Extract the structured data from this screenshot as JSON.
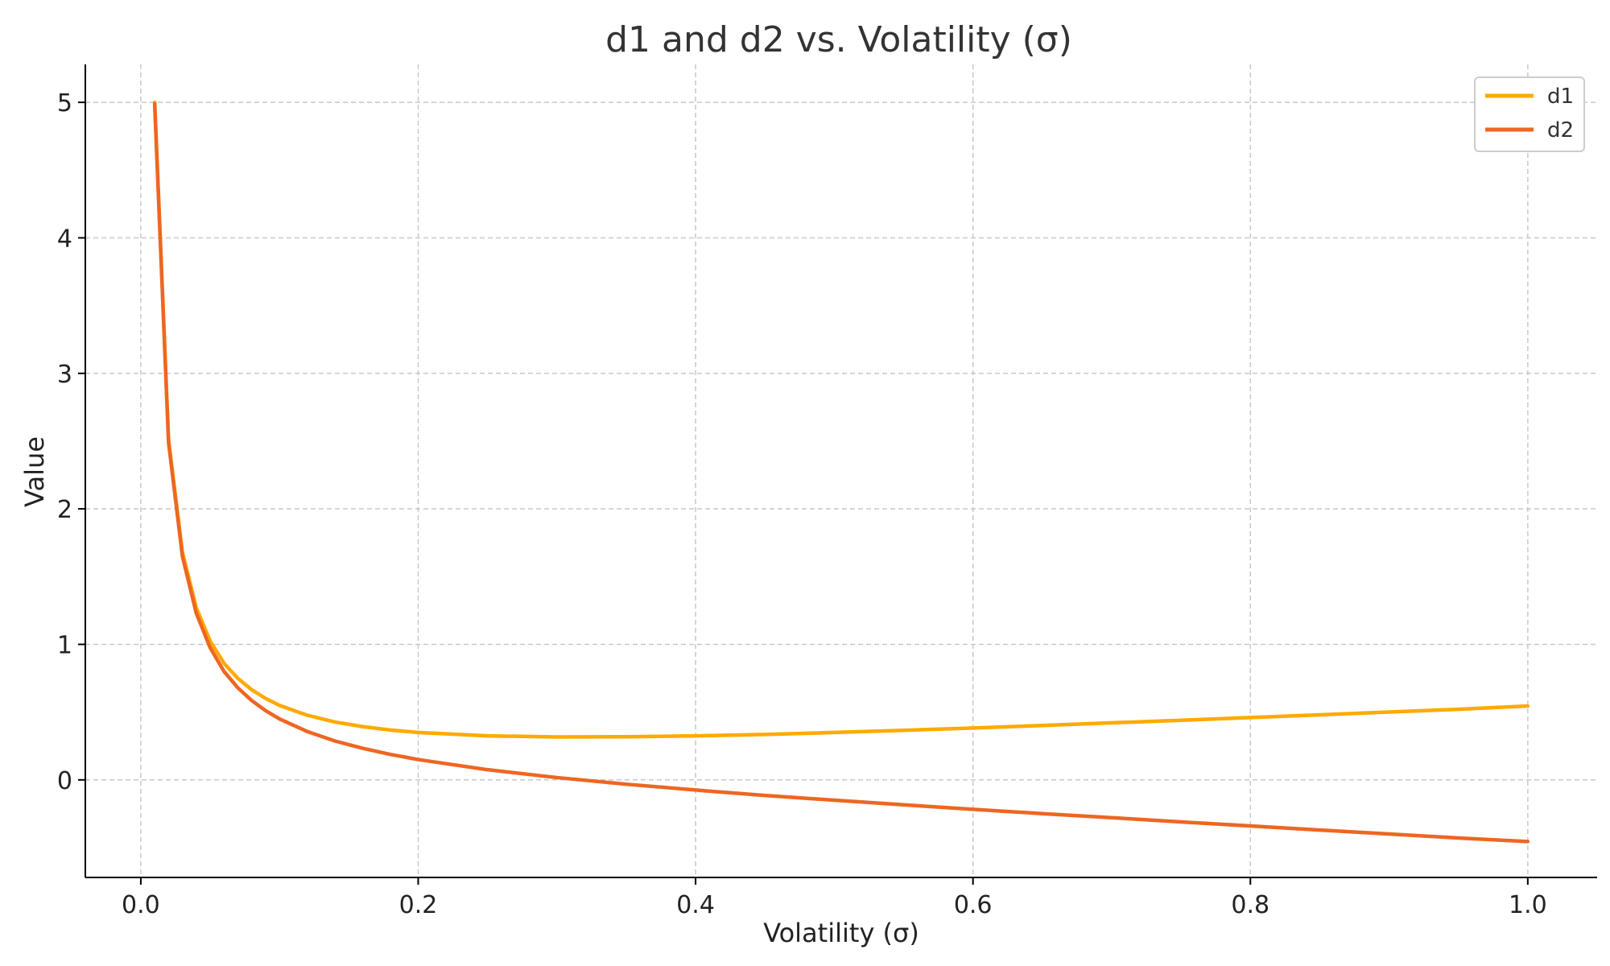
{
  "chart_data": {
    "type": "line",
    "title": "d1 and d2 vs. Volatility (σ)",
    "xlabel": "Volatility (σ)",
    "ylabel": "Value",
    "xlim": [
      -0.04,
      1.05
    ],
    "ylim": [
      -0.72,
      5.28
    ],
    "xticks": [
      0.0,
      0.2,
      0.4,
      0.6,
      0.8,
      1.0
    ],
    "xtick_labels": [
      "0.0",
      "0.2",
      "0.4",
      "0.6",
      "0.8",
      "1.0"
    ],
    "yticks": [
      0,
      1,
      2,
      3,
      4,
      5
    ],
    "ytick_labels": [
      "0",
      "1",
      "2",
      "3",
      "4",
      "5"
    ],
    "grid": true,
    "legend_position": "top-right",
    "x": [
      0.01,
      0.02,
      0.03,
      0.04,
      0.05,
      0.06,
      0.07,
      0.08,
      0.09,
      0.1,
      0.12,
      0.14,
      0.16,
      0.18,
      0.2,
      0.25,
      0.3,
      0.35,
      0.4,
      0.45,
      0.5,
      0.55,
      0.6,
      0.65,
      0.7,
      0.75,
      0.8,
      0.85,
      0.9,
      0.95,
      1.0
    ],
    "series": [
      {
        "name": "d1",
        "color": "#FFAA00",
        "values": [
          5.0,
          2.51,
          1.68,
          1.27,
          1.025,
          0.86,
          0.749,
          0.665,
          0.601,
          0.55,
          0.477,
          0.427,
          0.393,
          0.368,
          0.35,
          0.325,
          0.317,
          0.318,
          0.325,
          0.335,
          0.35,
          0.366,
          0.383,
          0.401,
          0.421,
          0.44,
          0.46,
          0.48,
          0.501,
          0.521,
          0.545
        ]
      },
      {
        "name": "d2",
        "color": "#EE6622",
        "values": [
          4.99,
          2.49,
          1.65,
          1.23,
          0.975,
          0.8,
          0.679,
          0.585,
          0.511,
          0.45,
          0.357,
          0.287,
          0.233,
          0.188,
          0.15,
          0.075,
          0.017,
          -0.032,
          -0.075,
          -0.115,
          -0.15,
          -0.184,
          -0.217,
          -0.249,
          -0.279,
          -0.31,
          -0.34,
          -0.37,
          -0.399,
          -0.429,
          -0.455
        ]
      }
    ]
  }
}
